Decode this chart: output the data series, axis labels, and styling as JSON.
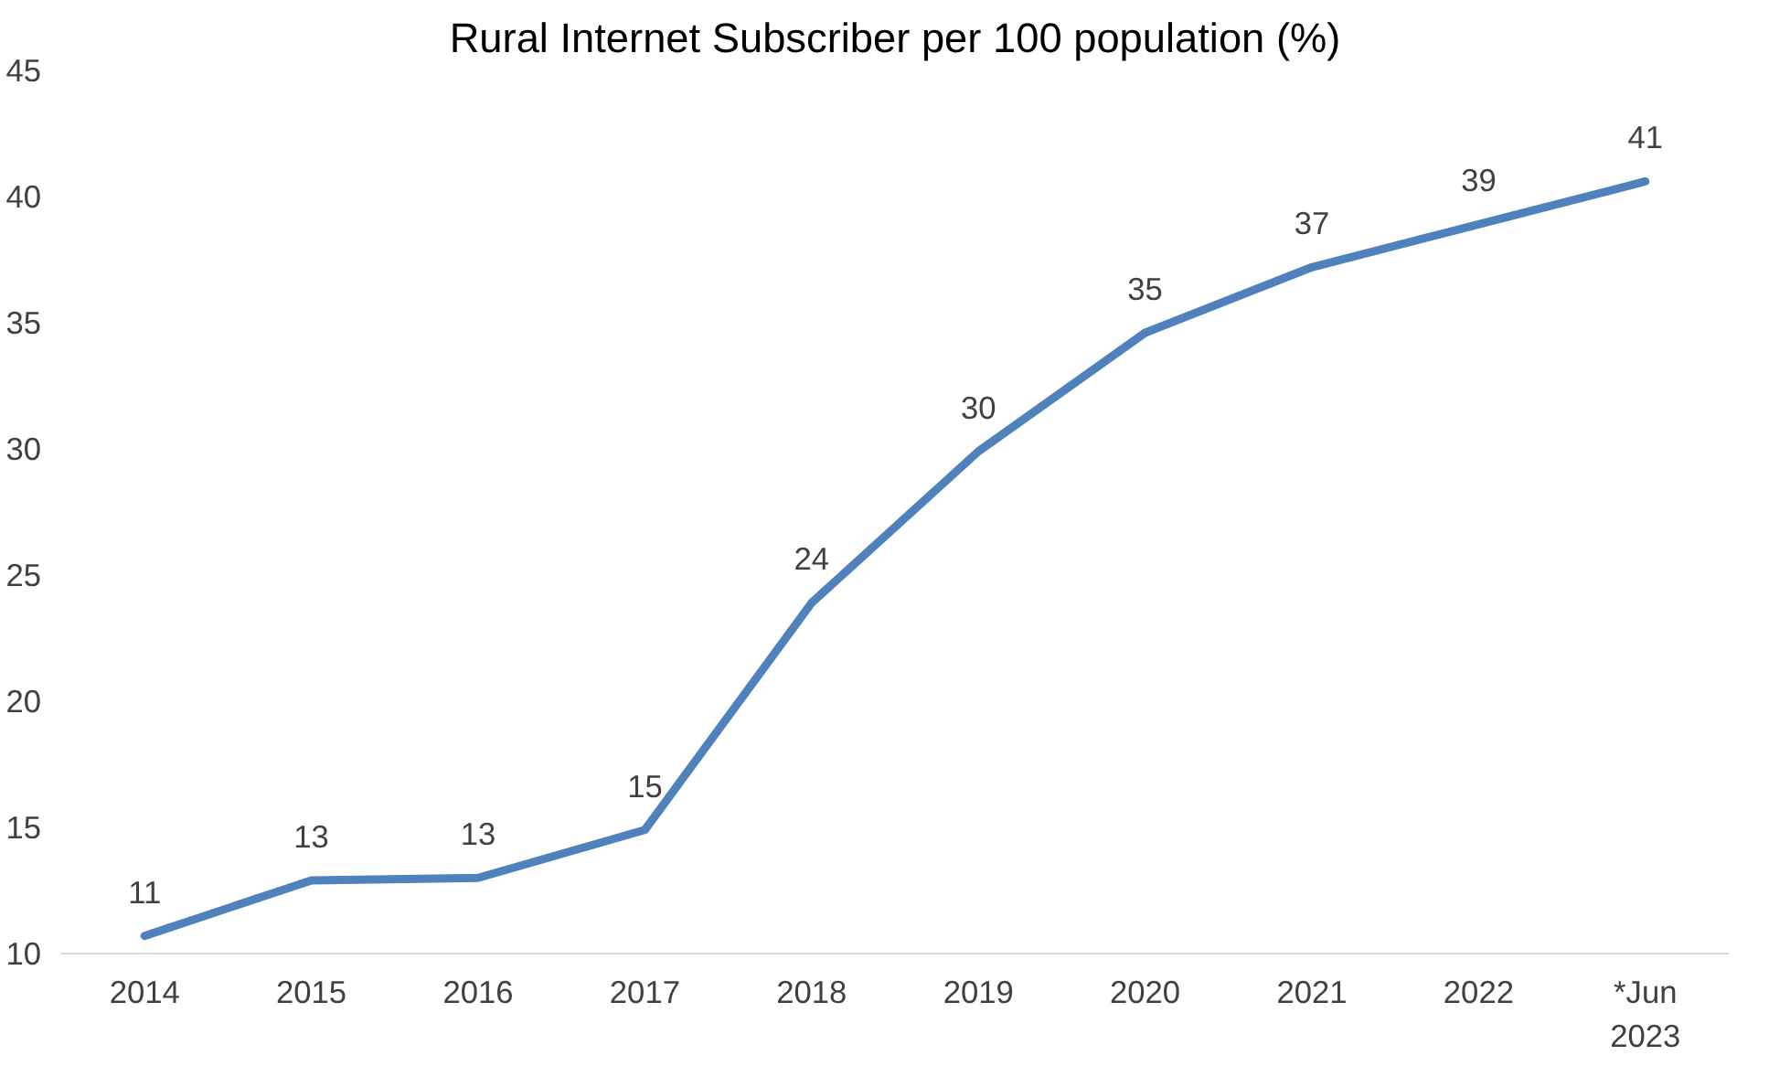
{
  "chart_data": {
    "type": "line",
    "title": "Rural Internet Subscriber per 100 population (%)",
    "categories": [
      "2014",
      "2015",
      "2016",
      "2017",
      "2018",
      "2019",
      "2020",
      "2021",
      "2022",
      "*Jun\n2023"
    ],
    "series": [
      {
        "color": "#4f81bd",
        "values": [
          10.7,
          12.9,
          13.0,
          14.9,
          23.9,
          29.9,
          34.6,
          37.2,
          38.9,
          40.6
        ],
        "value_labels": [
          "11",
          "13",
          "13",
          "15",
          "24",
          "30",
          "35",
          "37",
          "39",
          "41"
        ]
      }
    ],
    "ylim": [
      10,
      45
    ],
    "yticks": [
      10,
      15,
      20,
      25,
      30,
      35,
      40,
      45
    ],
    "grid": false,
    "marker": "none",
    "line_style": "solid"
  }
}
